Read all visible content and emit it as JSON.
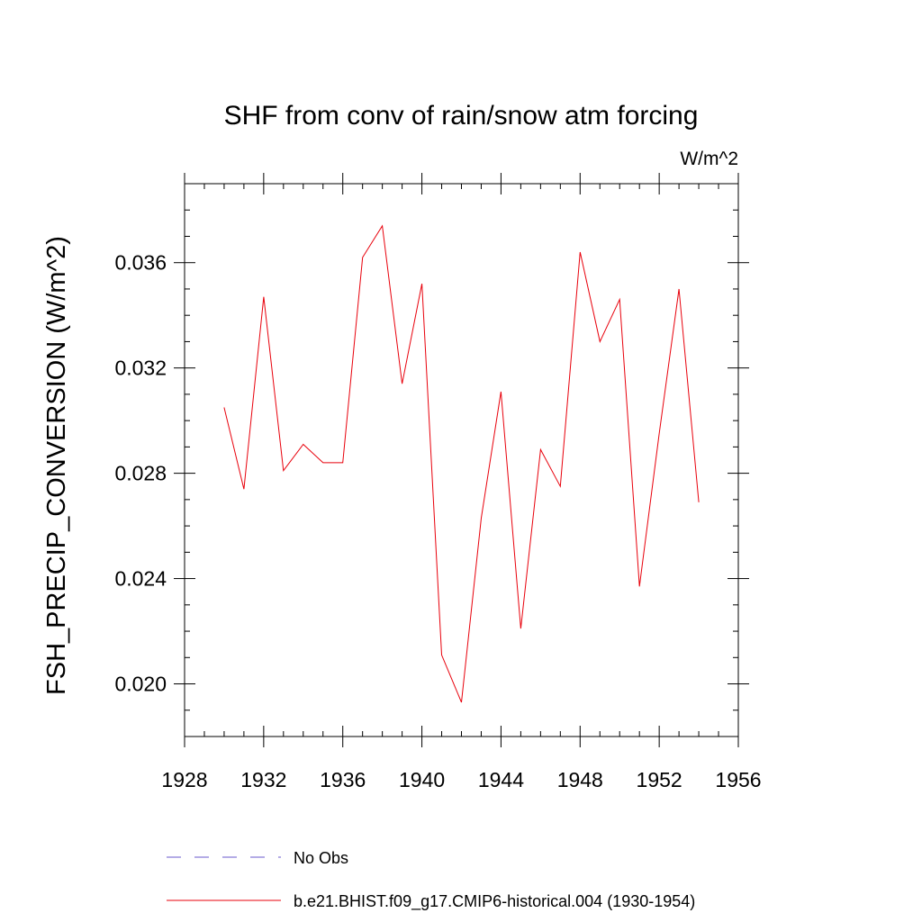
{
  "chart_data": {
    "type": "line",
    "title": "SHF from conv of rain/snow atm forcing",
    "units_label": "W/m^2",
    "xlabel": "",
    "ylabel": "FSH_PRECIP_CONVERSION  (W/m^2)",
    "xlim": [
      1928,
      1956
    ],
    "ylim": [
      0.018,
      0.039
    ],
    "x_major_ticks": [
      1928,
      1932,
      1936,
      1940,
      1944,
      1948,
      1952,
      1956
    ],
    "x_tick_labels": [
      "1928",
      "1932",
      "1936",
      "1940",
      "1944",
      "1948",
      "1952",
      "1956"
    ],
    "y_major_ticks": [
      0.02,
      0.024,
      0.028,
      0.032,
      0.036
    ],
    "y_tick_labels": [
      "0.020",
      "0.024",
      "0.028",
      "0.032",
      "0.036"
    ],
    "grid": false,
    "legend_position": "bottom",
    "series": [
      {
        "name": "b.e21.BHIST.f09_g17.CMIP6-historical.004 (1930-1954)",
        "color": "#e8000b",
        "style": "solid",
        "x": [
          1930,
          1931,
          1932,
          1933,
          1934,
          1935,
          1936,
          1937,
          1938,
          1939,
          1940,
          1941,
          1942,
          1943,
          1944,
          1945,
          1946,
          1947,
          1948,
          1949,
          1950,
          1951,
          1952,
          1953,
          1954
        ],
        "values": [
          0.0305,
          0.0274,
          0.0347,
          0.0281,
          0.0291,
          0.0284,
          0.0284,
          0.0362,
          0.0374,
          0.0314,
          0.0352,
          0.0211,
          0.0193,
          0.0263,
          0.0311,
          0.0221,
          0.0289,
          0.0275,
          0.0364,
          0.033,
          0.0346,
          0.0237,
          0.0295,
          0.035,
          0.0269
        ]
      }
    ],
    "legend": [
      {
        "label": "No Obs",
        "color": "#6a5acd",
        "style": "dashed"
      },
      {
        "label": "b.e21.BHIST.f09_g17.CMIP6-historical.004 (1930-1954)",
        "color": "#e8000b",
        "style": "solid"
      }
    ]
  }
}
